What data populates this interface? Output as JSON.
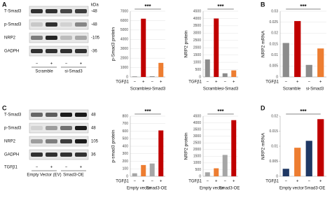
{
  "panel_letters": [
    "A",
    "B",
    "C",
    "D"
  ],
  "blots": [
    {
      "rows": [
        "T-Smad3",
        "p-Smad3",
        "NRP2",
        "GADPH"
      ],
      "kda_header": "kDa",
      "kda": [
        "-48",
        "-48",
        "-105",
        "-36"
      ],
      "lanes": [
        "−",
        "+",
        "−",
        "+"
      ],
      "groups": [
        "Scramble",
        "si-Smad3"
      ]
    },
    {
      "rows": [
        "T-Smad3",
        "p-Smad3",
        "NRP2",
        "GADPH"
      ],
      "kda": [
        "48",
        "48",
        "105",
        "36"
      ],
      "treatment": "TGFβ1",
      "lanes": [
        "−",
        "+",
        "−",
        "+"
      ],
      "groups": [
        "Empty Vector (EV)",
        "Smad3-OE"
      ]
    }
  ],
  "chart_data": [
    {
      "type": "bar",
      "y_label": "p-Smad3 protein",
      "annotation": "***",
      "treatment": "TGFβ1",
      "categories": [
        "−",
        "+",
        "−",
        "+"
      ],
      "groups": [
        "Scramble",
        "si-Smad3"
      ],
      "values": [
        60,
        6200,
        80,
        1500
      ],
      "colors": [
        "#8c8c8c",
        "#c00000",
        "#8c8c8c",
        "#ed7d31"
      ],
      "ylim": [
        0,
        7000
      ],
      "yticks": [
        0,
        1000,
        2000,
        3000,
        4000,
        5000,
        6000,
        7000
      ],
      "grid": true
    },
    {
      "type": "bar",
      "y_label": "NRP2 protein",
      "annotation": "***",
      "treatment": "TGFβ1",
      "categories": [
        "−",
        "+",
        "−",
        "+"
      ],
      "groups": [
        "Scramble",
        "si-Smad3"
      ],
      "values": [
        1200,
        4000,
        250,
        450
      ],
      "colors": [
        "#8c8c8c",
        "#c00000",
        "#8c8c8c",
        "#ed7d31"
      ],
      "ylim": [
        0,
        4500
      ],
      "yticks": [
        0,
        500,
        1000,
        1500,
        2000,
        2500,
        3000,
        3500,
        4000,
        4500
      ],
      "grid": true
    },
    {
      "type": "bar",
      "y_label": "NRP2 mRNA",
      "annotation": "***",
      "treatment": "TGFβ1",
      "categories": [
        "−",
        "+",
        "−",
        "+"
      ],
      "groups": [
        "Scramble",
        "si-Smad3"
      ],
      "values": [
        0.0155,
        0.0255,
        0.0055,
        0.013
      ],
      "colors": [
        "#8c8c8c",
        "#c00000",
        "#8c8c8c",
        "#ed7d31"
      ],
      "ylim": [
        0,
        0.03
      ],
      "yticks": [
        0,
        0.005,
        0.01,
        0.015,
        0.02,
        0.025,
        0.03
      ],
      "grid": true
    },
    {
      "type": "bar",
      "y_label": "p-smad3 protein",
      "annotation": "***",
      "treatment": "TGFβ1",
      "categories": [
        "−",
        "+",
        "−",
        "+"
      ],
      "groups": [
        "Empty vector",
        "Smad3-OE"
      ],
      "values": [
        40,
        150,
        170,
        610
      ],
      "colors": [
        "#a6a6a6",
        "#ed7d31",
        "#a6a6a6",
        "#c00000"
      ],
      "ylim": [
        0,
        800
      ],
      "yticks": [
        0,
        100,
        200,
        300,
        400,
        500,
        600,
        700,
        800
      ],
      "grid": true
    },
    {
      "type": "bar",
      "y_label": "NRP2 protein",
      "annotation": "***",
      "treatment": "TGFβ1",
      "categories": [
        "−",
        "+",
        "−",
        "+"
      ],
      "groups": [
        "Empty vector",
        "Smad3-OE"
      ],
      "values": [
        300,
        600,
        1600,
        4200
      ],
      "colors": [
        "#a6a6a6",
        "#ed7d31",
        "#a6a6a6",
        "#c00000"
      ],
      "ylim": [
        0,
        4500
      ],
      "yticks": [
        0,
        500,
        1000,
        1500,
        2000,
        2500,
        3000,
        3500,
        4000,
        4500
      ],
      "grid": true
    },
    {
      "type": "bar",
      "y_label": "NRP2 mRNA",
      "annotation": "***",
      "treatment": "TGFβ1",
      "categories": [
        "−",
        "+",
        "−",
        "+"
      ],
      "groups": [
        "Empty vector",
        "Smad3-OE"
      ],
      "values": [
        0.0025,
        0.0095,
        0.0118,
        0.019
      ],
      "colors": [
        "#1f3864",
        "#ed7d31",
        "#1f3864",
        "#c00000"
      ],
      "ylim": [
        0,
        0.02
      ],
      "yticks": [
        0,
        0.005,
        0.01,
        0.015,
        0.02
      ],
      "grid": false
    }
  ]
}
